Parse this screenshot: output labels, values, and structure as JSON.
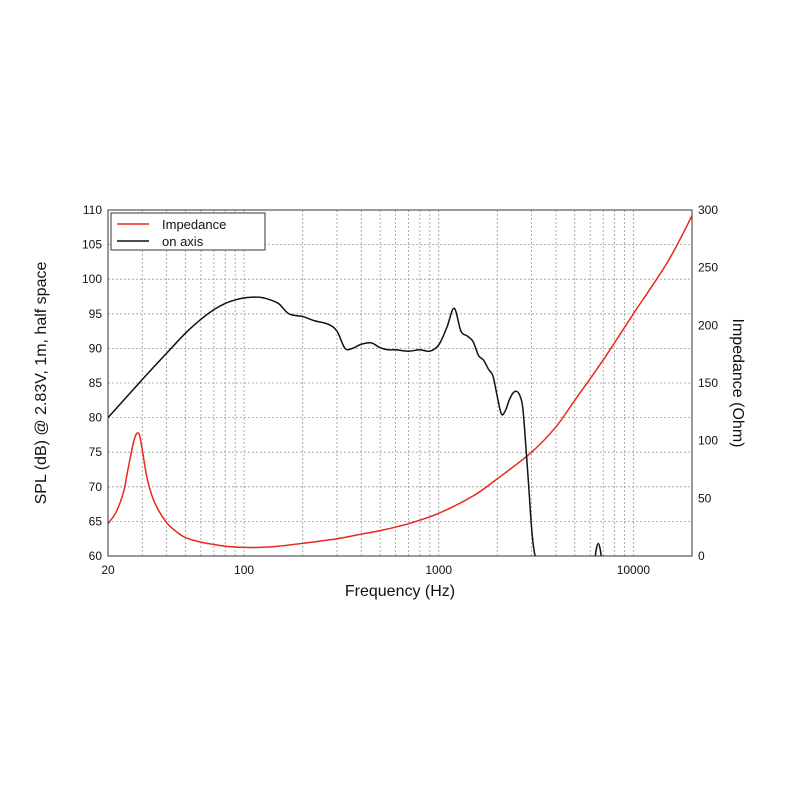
{
  "chart_data": {
    "type": "line",
    "xlabel": "Frequency (Hz)",
    "ylabel_left": "SPL (dB) @ 2.83V, 1m, half space",
    "ylabel_right": "Impedance (Ohm)",
    "x_scale": "log",
    "xlim": [
      20,
      20000
    ],
    "ylim_left": [
      60,
      110
    ],
    "ylim_right": [
      0,
      300
    ],
    "x_ticks": [
      20,
      100,
      1000,
      10000
    ],
    "x_tick_labels": [
      "20",
      "100",
      "1000",
      "10000"
    ],
    "y_ticks_left": [
      60,
      65,
      70,
      75,
      80,
      85,
      90,
      95,
      100,
      105,
      110
    ],
    "y_tick_labels_left": [
      "60",
      "65",
      "70",
      "75",
      "80",
      "85",
      "90",
      "95",
      "100",
      "105",
      "110"
    ],
    "y_ticks_right": [
      0,
      50,
      100,
      150,
      200,
      250,
      300
    ],
    "y_tick_labels_right": [
      "0",
      "50",
      "100",
      "150",
      "200",
      "250",
      "300"
    ],
    "grid": true,
    "legend_position": "top-left",
    "series": [
      {
        "name": "Impedance",
        "axis": "right",
        "color": "#e8281e",
        "x": [
          20,
          22,
          24,
          25,
          26,
          27,
          28,
          29,
          30,
          32,
          35,
          40,
          45,
          50,
          60,
          70,
          80,
          100,
          120,
          150,
          200,
          300,
          400,
          500,
          700,
          1000,
          1500,
          2000,
          3000,
          4000,
          5000,
          7000,
          10000,
          15000,
          20000
        ],
        "values": [
          28,
          38,
          55,
          70,
          85,
          98,
          106,
          105,
          92,
          65,
          45,
          29,
          21,
          16,
          12,
          10,
          8.5,
          7.5,
          7.5,
          8.5,
          11,
          15,
          19,
          22,
          28,
          37,
          52,
          67,
          90,
          112,
          135,
          170,
          210,
          255,
          295
        ]
      },
      {
        "name": "on axis",
        "axis": "left",
        "color": "#111111",
        "x": [
          20,
          30,
          40,
          50,
          60,
          70,
          80,
          90,
          100,
          110,
          120,
          130,
          150,
          170,
          200,
          230,
          270,
          300,
          330,
          360,
          400,
          450,
          500,
          550,
          600,
          700,
          800,
          900,
          1000,
          1100,
          1200,
          1300,
          1400,
          1500,
          1600,
          1700,
          1800,
          1900,
          2000,
          2100,
          2200,
          2300,
          2400,
          2500,
          2600,
          2700,
          2800,
          2900,
          3000,
          3100,
          3200,
          3300
        ],
        "values": [
          80,
          85.5,
          89.3,
          92.2,
          94.2,
          95.6,
          96.5,
          97,
          97.3,
          97.4,
          97.4,
          97.2,
          96.5,
          95,
          94.6,
          94,
          93.5,
          92.5,
          90,
          90,
          90.6,
          90.8,
          90.1,
          89.8,
          89.8,
          89.6,
          89.8,
          89.6,
          90.5,
          93,
          95.8,
          92.5,
          91.8,
          91,
          89,
          88.3,
          87,
          86,
          83,
          80.5,
          81,
          82.5,
          83.5,
          83.8,
          83.3,
          81.5,
          76,
          70,
          64,
          60.5,
          59.5,
          59
        ]
      },
      {
        "name": "",
        "axis": "left",
        "color": "#111111",
        "x": [
          6300,
          6450,
          6600,
          6750,
          6900
        ],
        "values": [
          59,
          61,
          61.8,
          61,
          59
        ]
      }
    ]
  }
}
